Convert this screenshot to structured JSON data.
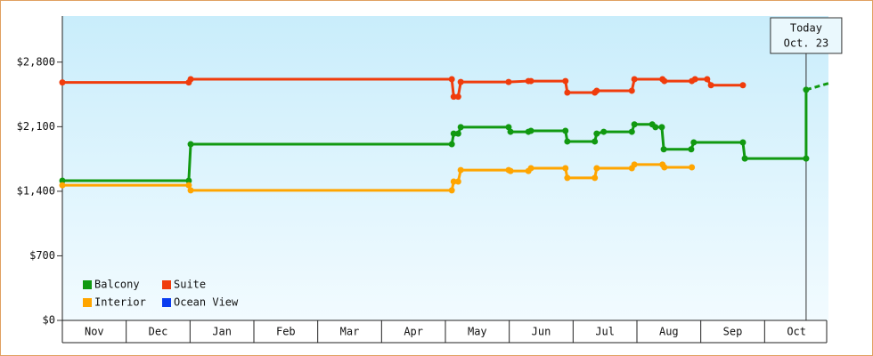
{
  "chart_data": {
    "type": "line",
    "step": true,
    "categories": [
      "Nov",
      "Dec",
      "Jan",
      "Feb",
      "Mar",
      "Apr",
      "May",
      "Jun",
      "Jul",
      "Aug",
      "Sep",
      "Oct"
    ],
    "xlim": [
      0,
      12
    ],
    "ylim": [
      0,
      3300
    ],
    "yticks": [
      {
        "value": 0,
        "label": "$0"
      },
      {
        "value": 700,
        "label": "$700"
      },
      {
        "value": 1400,
        "label": "$1,400"
      },
      {
        "value": 2100,
        "label": "$2,100"
      },
      {
        "value": 2800,
        "label": "$2,800"
      }
    ],
    "legend": "lower left",
    "series": [
      {
        "name": "Balcony",
        "color": "#119911",
        "x": [
          0,
          1.98,
          2.01,
          6.1,
          6.13,
          6.2,
          6.24,
          6.99,
          7.02,
          7.3,
          7.34,
          7.88,
          7.91,
          8.34,
          8.37,
          8.48,
          8.92,
          8.96,
          9.24,
          9.29,
          9.39,
          9.42,
          9.85,
          9.89,
          10.66,
          10.69,
          11.65,
          11.65
        ],
        "values": [
          1515,
          1515,
          1910,
          1910,
          2025,
          2025,
          2095,
          2095,
          2045,
          2045,
          2055,
          2055,
          1940,
          1940,
          2025,
          2045,
          2045,
          2125,
          2125,
          2095,
          2095,
          1855,
          1855,
          1930,
          1930,
          1755,
          1755,
          2500
        ],
        "projection": {
          "x": [
            11.65,
            12
          ],
          "values": [
            2500,
            2570
          ]
        }
      },
      {
        "name": "Suite",
        "color": "#f03c0c",
        "x": [
          0,
          1.98,
          2.01,
          6.1,
          6.13,
          6.2,
          6.24,
          6.99,
          7.3,
          7.34,
          7.88,
          7.91,
          8.34,
          8.37,
          8.92,
          8.96,
          9.4,
          9.43,
          9.86,
          9.91,
          10.1,
          10.16,
          10.66
        ],
        "values": [
          2580,
          2580,
          2615,
          2615,
          2425,
          2425,
          2585,
          2585,
          2595,
          2595,
          2595,
          2470,
          2470,
          2490,
          2490,
          2615,
          2615,
          2595,
          2595,
          2615,
          2615,
          2550,
          2550
        ]
      },
      {
        "name": "Interior",
        "color": "#ffa500",
        "x": [
          0,
          1.98,
          2.01,
          6.1,
          6.13,
          6.2,
          6.24,
          6.99,
          7.02,
          7.3,
          7.34,
          7.88,
          7.91,
          8.34,
          8.37,
          8.92,
          8.96,
          9.4,
          9.43,
          9.86
        ],
        "values": [
          1465,
          1465,
          1410,
          1410,
          1505,
          1505,
          1630,
          1630,
          1620,
          1620,
          1650,
          1650,
          1545,
          1545,
          1650,
          1650,
          1690,
          1690,
          1660,
          1660
        ]
      },
      {
        "name": "Ocean View",
        "color": "#0a3cf0",
        "x": [],
        "values": []
      }
    ],
    "annotation": {
      "x": 11.65,
      "lines": [
        "Today",
        "Oct. 23"
      ]
    }
  }
}
